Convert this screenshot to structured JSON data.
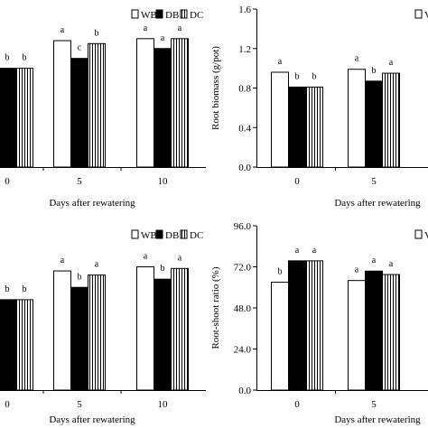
{
  "chart_data": [
    {
      "type": "bar",
      "panel": "top-left",
      "categories": [
        "0",
        "5",
        "10"
      ],
      "series": [
        {
          "name": "WB",
          "values": [
            null,
            1.28,
            1.3
          ]
        },
        {
          "name": "DB",
          "values": [
            1.0,
            1.1,
            1.2
          ]
        },
        {
          "name": "DC",
          "values": [
            1.0,
            1.25,
            1.3
          ]
        }
      ],
      "significance": [
        [
          "",
          "a",
          "a"
        ],
        [
          "b",
          "c",
          "a"
        ],
        [
          "b",
          "b",
          "a"
        ]
      ],
      "xlabel": "Days after rewatering",
      "ylabel": "",
      "ylim": [
        0,
        1.6
      ],
      "yticks": [],
      "legend": "top-right",
      "legend_labels": [
        "WB",
        "DB",
        "DC"
      ],
      "grid": false
    },
    {
      "type": "bar",
      "panel": "top-right",
      "categories": [
        "0",
        "5"
      ],
      "series": [
        {
          "name": "WB",
          "values": [
            0.96,
            0.99
          ]
        },
        {
          "name": "DB",
          "values": [
            0.81,
            0.87
          ]
        },
        {
          "name": "DC",
          "values": [
            0.81,
            0.95
          ]
        }
      ],
      "significance": [
        [
          "a",
          "a"
        ],
        [
          "b",
          "b"
        ],
        [
          "b",
          "a"
        ]
      ],
      "xlabel": "Days after rewatering",
      "ylabel": "Root biomass (g/pot)",
      "ylim": [
        0,
        1.6
      ],
      "yticks": [
        "0.0",
        "0.4",
        "0.8",
        "1.2",
        "1.6"
      ],
      "legend": "top-right",
      "legend_labels": [
        "V"
      ],
      "grid": false
    },
    {
      "type": "bar",
      "panel": "bottom-left",
      "categories": [
        "0",
        "5",
        "10"
      ],
      "series": [
        {
          "name": "WB",
          "values": [
            null,
            1.45,
            1.5
          ]
        },
        {
          "name": "DB",
          "values": [
            1.1,
            1.25,
            1.35
          ]
        },
        {
          "name": "DC",
          "values": [
            1.1,
            1.4,
            1.48
          ]
        }
      ],
      "significance": [
        [
          "",
          "a",
          "a"
        ],
        [
          "b",
          "b",
          "b"
        ],
        [
          "b",
          "a",
          "a"
        ]
      ],
      "xlabel": "Days after rewatering",
      "ylabel": "",
      "ylim": [
        0,
        2.0
      ],
      "yticks": [],
      "legend": "top-right",
      "legend_labels": [
        "WB",
        "DB",
        "DC"
      ],
      "grid": false
    },
    {
      "type": "bar",
      "panel": "bottom-right",
      "categories": [
        "0",
        "5"
      ],
      "series": [
        {
          "name": "WB",
          "values": [
            63.0,
            64.0
          ]
        },
        {
          "name": "DB",
          "values": [
            75.5,
            69.5
          ]
        },
        {
          "name": "DC",
          "values": [
            75.5,
            67.5
          ]
        }
      ],
      "significance": [
        [
          "b",
          "a"
        ],
        [
          "a",
          "a"
        ],
        [
          "a",
          "a"
        ]
      ],
      "xlabel": "Days after rewatering",
      "ylabel": "Root-shoot ratio (%)",
      "ylim": [
        0,
        96
      ],
      "yticks": [
        "0.0",
        "24.0",
        "48.0",
        "72.0",
        "96.0"
      ],
      "legend": "top-right",
      "legend_labels": [
        "V"
      ],
      "grid": false
    }
  ]
}
